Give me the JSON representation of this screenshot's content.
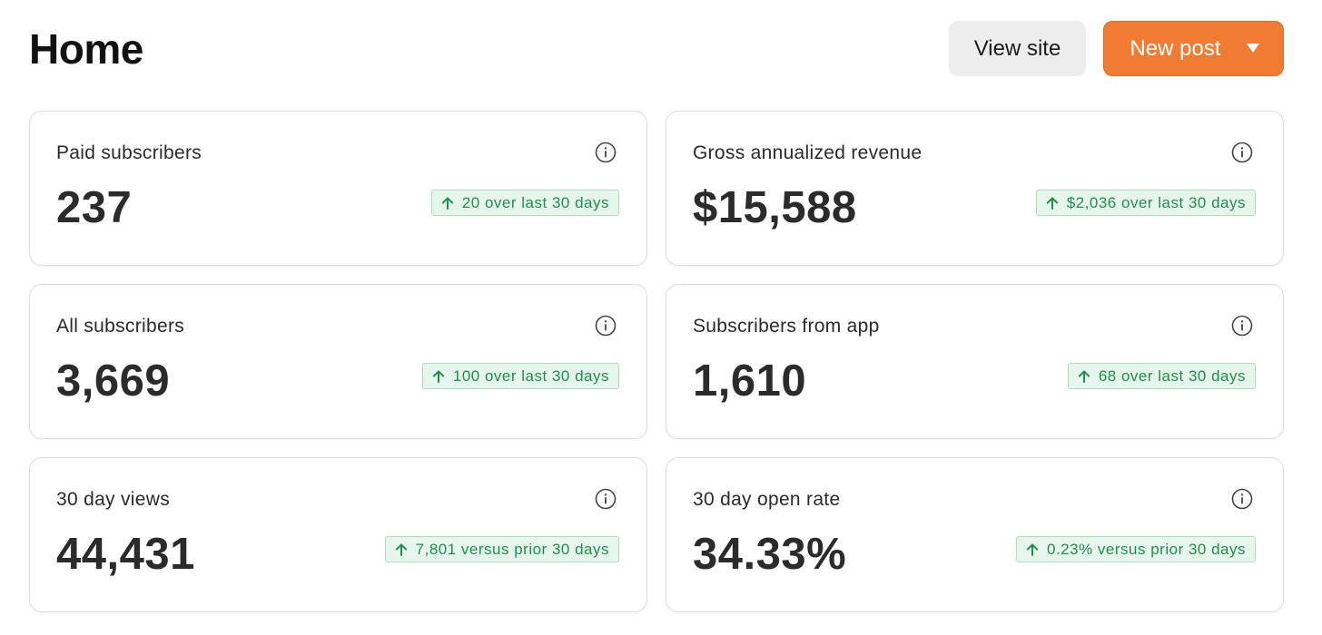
{
  "header": {
    "title": "Home",
    "view_site_label": "View site",
    "new_post_label": "New post"
  },
  "colors": {
    "accent": "#f07c33",
    "positive_text": "#1f8f4f",
    "positive_bg": "#e6f6ec"
  },
  "cards": [
    {
      "label": "Paid subscribers",
      "value": "237",
      "trend": "20 over last 30 days",
      "trend_icon": "arrow-up-icon",
      "info_icon": "info-icon"
    },
    {
      "label": "Gross annualized revenue",
      "value": "$15,588",
      "trend": "$2,036 over last 30 days",
      "trend_icon": "arrow-up-icon",
      "info_icon": "info-icon"
    },
    {
      "label": "All subscribers",
      "value": "3,669",
      "trend": "100 over last 30 days",
      "trend_icon": "arrow-up-icon",
      "info_icon": "info-icon"
    },
    {
      "label": "Subscribers from app",
      "value": "1,610",
      "trend": "68 over last 30 days",
      "trend_icon": "arrow-up-icon",
      "info_icon": "info-icon"
    },
    {
      "label": "30 day views",
      "value": "44,431",
      "trend": "7,801 versus prior 30 days",
      "trend_icon": "arrow-up-icon",
      "info_icon": "info-icon"
    },
    {
      "label": "30 day open rate",
      "value": "34.33%",
      "trend": "0.23% versus prior 30 days",
      "trend_icon": "arrow-up-icon",
      "info_icon": "info-icon"
    }
  ]
}
